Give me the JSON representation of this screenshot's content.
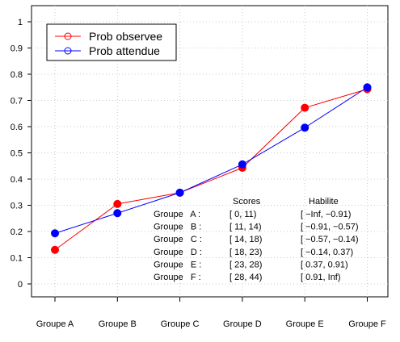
{
  "chart_data": {
    "type": "line",
    "title": "",
    "xlabel": "",
    "ylabel": "",
    "categories": [
      "Groupe A",
      "Groupe B",
      "Groupe C",
      "Groupe D",
      "Groupe E",
      "Groupe F"
    ],
    "ylim": [
      0,
      1
    ],
    "yticks": [
      "0",
      "0.1",
      "0.2",
      "0.3",
      "0.4",
      "0.5",
      "0.6",
      "0.7",
      "0.8",
      "0.9",
      "1"
    ],
    "grid": true,
    "legend_position": "top-left",
    "series": [
      {
        "name": "Prob observee",
        "color": "#ff0000",
        "values": [
          0.13,
          0.305,
          0.348,
          0.443,
          0.672,
          0.743
        ]
      },
      {
        "name": "Prob attendue",
        "color": "#0000ff",
        "values": [
          0.193,
          0.27,
          0.348,
          0.456,
          0.596,
          0.75
        ]
      }
    ],
    "annotation_table": {
      "headers": {
        "scores": "Scores",
        "habilite": "Habilite"
      },
      "rows": [
        {
          "groupe": "Groupe   A :",
          "scores": "[ 0, 11)",
          "habilite": "[ −Inf, −0.91)"
        },
        {
          "groupe": "Groupe   B :",
          "scores": "[ 11, 14)",
          "habilite": "[ −0.91, −0.57)"
        },
        {
          "groupe": "Groupe   C :",
          "scores": "[ 14, 18)",
          "habilite": "[ −0.57, −0.14)"
        },
        {
          "groupe": "Groupe   D :",
          "scores": "[ 18, 23)",
          "habilite": "[ −0.14, 0.37)"
        },
        {
          "groupe": "Groupe   E :",
          "scores": "[ 23, 28)",
          "habilite": "[ 0.37, 0.91)"
        },
        {
          "groupe": "Groupe   F :",
          "scores": "[ 28, 44)",
          "habilite": "[ 0.91, Inf)"
        }
      ]
    }
  }
}
